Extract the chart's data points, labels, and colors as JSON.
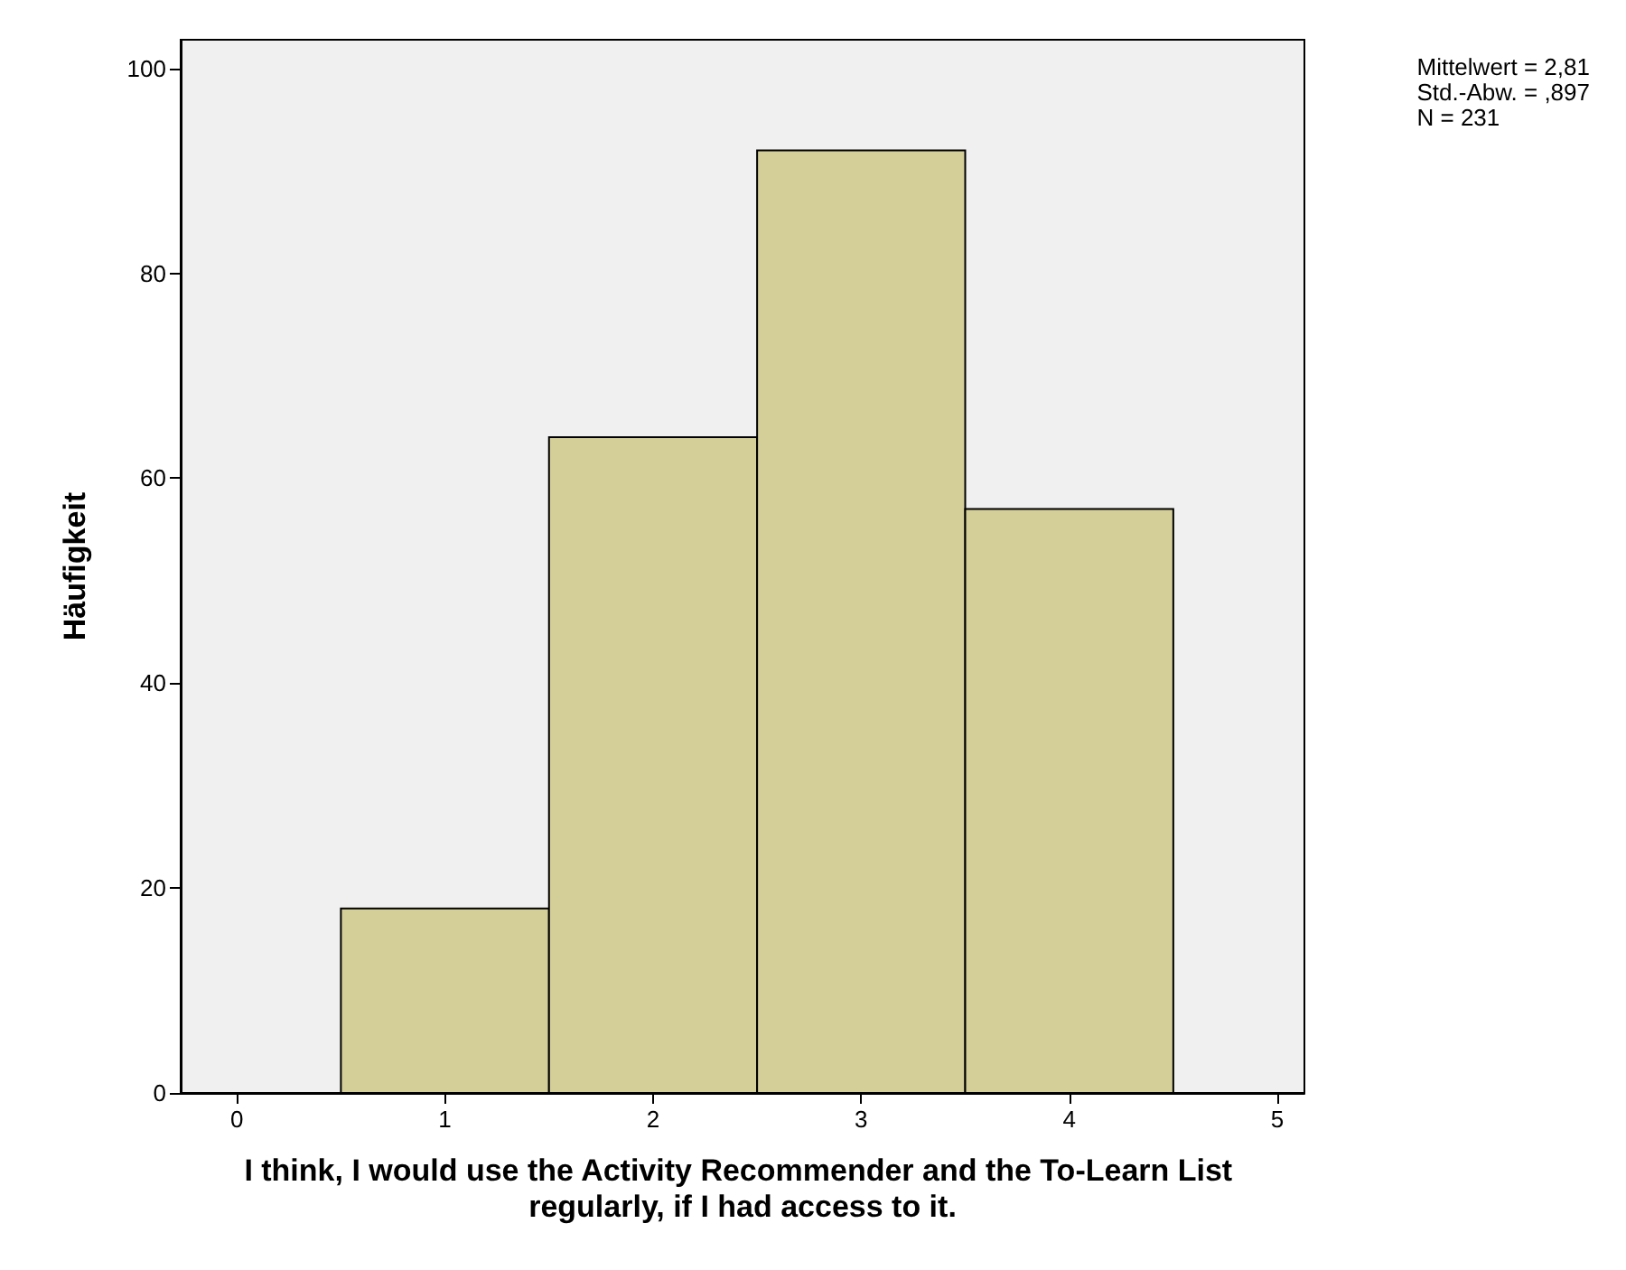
{
  "chart_data": {
    "type": "histogram",
    "xlabel": "I think, I would use the Activity Recommender and the To-Learn List regularly, if I had access to it.",
    "ylabel": "Häufigkeit",
    "bins": [
      0.5,
      1.5,
      2.5,
      3.5,
      4.5
    ],
    "values": [
      18,
      64,
      92,
      57
    ],
    "color": "#d4cf99",
    "xlim": [
      -0.27,
      5.13
    ],
    "xticks": [
      0,
      1,
      2,
      3,
      4,
      5
    ],
    "ylim": [
      0,
      102.8
    ],
    "yticks": [
      0,
      20,
      40,
      60,
      80,
      100
    ],
    "annotations": [
      "Mittelwert = 2,81",
      "Std.-Abw. = ,897",
      "N = 231"
    ],
    "grid": false
  }
}
